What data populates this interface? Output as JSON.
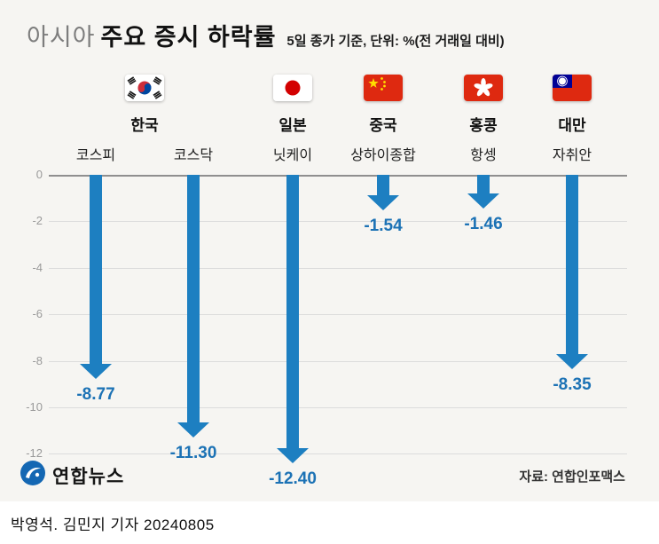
{
  "header": {
    "title_light": "아시아",
    "title_bold": "주요 증시 하락률",
    "subtitle": "5일 종가 기준, 단위: %(전 거래일 대비)"
  },
  "chart_data": {
    "type": "bar",
    "title": "아시아 주요 증시 하락률",
    "subtitle": "5일 종가 기준, 단위: %(전 거래일 대비)",
    "ylim": [
      -12,
      0
    ],
    "yticks": [
      0,
      -2,
      -4,
      -6,
      -8,
      -10,
      -12
    ],
    "grid": true,
    "groups": [
      {
        "country": "한국",
        "flag": "south-korea",
        "indices": [
          {
            "name": "코스피",
            "value": -8.77,
            "label": "-8.77"
          },
          {
            "name": "코스닥",
            "value": -11.3,
            "label": "-11.30"
          }
        ]
      },
      {
        "country": "일본",
        "flag": "japan",
        "indices": [
          {
            "name": "닛케이",
            "value": -12.4,
            "label": "-12.40"
          }
        ]
      },
      {
        "country": "중국",
        "flag": "china",
        "indices": [
          {
            "name": "상하이종합",
            "value": -1.54,
            "label": "-1.54"
          }
        ]
      },
      {
        "country": "홍콩",
        "flag": "hong-kong",
        "indices": [
          {
            "name": "항셍",
            "value": -1.46,
            "label": "-1.46"
          }
        ]
      },
      {
        "country": "대만",
        "flag": "taiwan",
        "indices": [
          {
            "name": "자취안",
            "value": -8.35,
            "label": "-8.35"
          }
        ]
      }
    ]
  },
  "colors": {
    "arrow": "#1d7fc1",
    "value": "#1c72b5",
    "grid": "#dcdcdc",
    "zero_line": "#8f8f8f"
  },
  "footer": {
    "logo_text": "연합뉴스",
    "source": "자료: 연합인포맥스"
  },
  "byline": "박영석. 김민지 기자 20240805"
}
